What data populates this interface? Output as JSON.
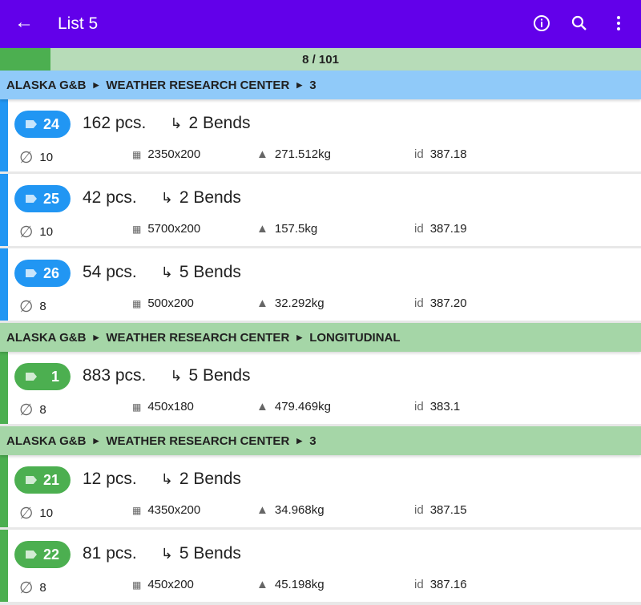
{
  "appbar": {
    "title": "List 5",
    "color": "#6200ea"
  },
  "progress": {
    "text": "8 / 101",
    "fraction": 0.079
  },
  "groups": [
    {
      "path": [
        "ALASKA G&B",
        "WEATHER RESEARCH CENTER",
        "3"
      ],
      "color": "#90caf9",
      "accent": "#2196f3",
      "items": [
        {
          "num": "24",
          "pcs": "162 pcs.",
          "bends": "2 Bends",
          "dia": "10",
          "size": "2350x200",
          "weight": "271.512kg",
          "id": "387.18"
        },
        {
          "num": "25",
          "pcs": "42 pcs.",
          "bends": "2 Bends",
          "dia": "10",
          "size": "5700x200",
          "weight": "157.5kg",
          "id": "387.19"
        },
        {
          "num": "26",
          "pcs": "54 pcs.",
          "bends": "5 Bends",
          "dia": "8",
          "size": "500x200",
          "weight": "32.292kg",
          "id": "387.20"
        }
      ]
    },
    {
      "path": [
        "ALASKA G&B",
        "WEATHER RESEARCH CENTER",
        "LONGITUDINAL"
      ],
      "color": "#a5d6a7",
      "accent": "#4caf50",
      "items": [
        {
          "num": "1",
          "pcs": "883 pcs.",
          "bends": "5 Bends",
          "dia": "8",
          "size": "450x180",
          "weight": "479.469kg",
          "id": "383.1"
        }
      ]
    },
    {
      "path": [
        "ALASKA G&B",
        "WEATHER RESEARCH CENTER",
        "3"
      ],
      "color": "#a5d6a7",
      "accent": "#4caf50",
      "items": [
        {
          "num": "21",
          "pcs": "12 pcs.",
          "bends": "2 Bends",
          "dia": "10",
          "size": "4350x200",
          "weight": "34.968kg",
          "id": "387.15"
        },
        {
          "num": "22",
          "pcs": "81 pcs.",
          "bends": "5 Bends",
          "dia": "8",
          "size": "450x200",
          "weight": "45.198kg",
          "id": "387.16"
        }
      ]
    }
  ],
  "labels": {
    "id": "id"
  }
}
